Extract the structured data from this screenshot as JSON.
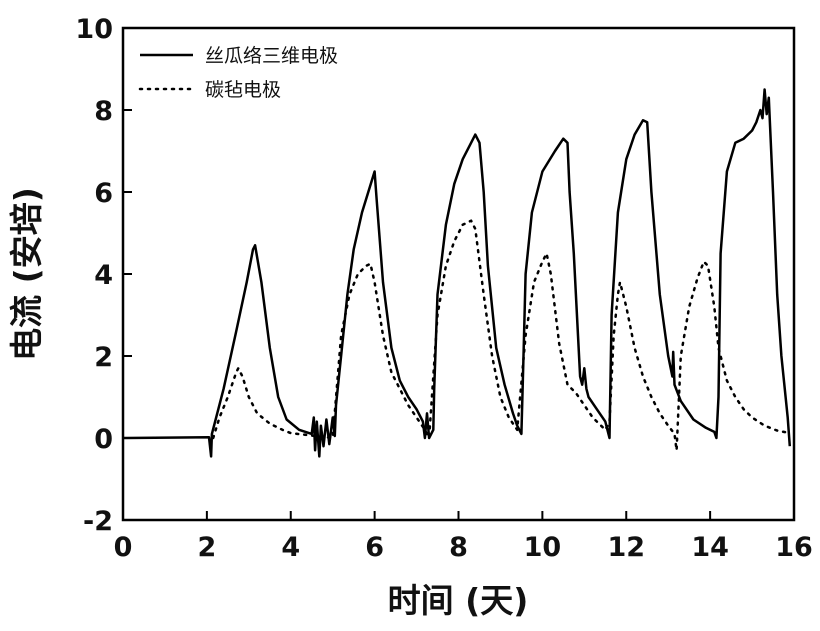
{
  "chart_data": {
    "type": "line",
    "xlabel": "时间 (天)",
    "ylabel": "电流 (安培)",
    "xlim": [
      0,
      16
    ],
    "ylim": [
      -2,
      10
    ],
    "xticks": [
      0,
      2,
      4,
      6,
      8,
      10,
      12,
      14,
      16
    ],
    "yticks": [
      -2,
      0,
      2,
      4,
      6,
      8,
      10
    ],
    "grid": false,
    "legend_position": "top-left",
    "series": [
      {
        "name": "丝瓜络三维电极",
        "style": "solid",
        "color": "#000000",
        "points": [
          [
            0,
            0.0
          ],
          [
            2.05,
            0.02
          ],
          [
            2.1,
            -0.45
          ],
          [
            2.12,
            0.1
          ],
          [
            2.4,
            1.2
          ],
          [
            2.7,
            2.6
          ],
          [
            2.95,
            3.8
          ],
          [
            3.1,
            4.6
          ],
          [
            3.15,
            4.7
          ],
          [
            3.3,
            3.8
          ],
          [
            3.5,
            2.2
          ],
          [
            3.7,
            1.0
          ],
          [
            3.9,
            0.45
          ],
          [
            4.2,
            0.2
          ],
          [
            4.5,
            0.1
          ],
          [
            4.55,
            0.5
          ],
          [
            4.58,
            -0.3
          ],
          [
            4.62,
            0.4
          ],
          [
            4.68,
            -0.45
          ],
          [
            4.72,
            0.3
          ],
          [
            4.78,
            -0.2
          ],
          [
            4.85,
            0.45
          ],
          [
            4.92,
            -0.15
          ],
          [
            5.0,
            0.5
          ],
          [
            5.05,
            0.05
          ],
          [
            5.08,
            0.8
          ],
          [
            5.2,
            2.0
          ],
          [
            5.35,
            3.5
          ],
          [
            5.5,
            4.6
          ],
          [
            5.7,
            5.5
          ],
          [
            5.85,
            6.0
          ],
          [
            6.0,
            6.5
          ],
          [
            6.05,
            5.8
          ],
          [
            6.2,
            3.8
          ],
          [
            6.4,
            2.2
          ],
          [
            6.6,
            1.4
          ],
          [
            6.8,
            1.0
          ],
          [
            7.0,
            0.7
          ],
          [
            7.15,
            0.4
          ],
          [
            7.2,
            0.0
          ],
          [
            7.25,
            0.6
          ],
          [
            7.3,
            0.0
          ],
          [
            7.4,
            0.2
          ],
          [
            7.42,
            1.2
          ],
          [
            7.5,
            3.5
          ],
          [
            7.7,
            5.2
          ],
          [
            7.9,
            6.2
          ],
          [
            8.1,
            6.8
          ],
          [
            8.3,
            7.2
          ],
          [
            8.4,
            7.4
          ],
          [
            8.5,
            7.2
          ],
          [
            8.6,
            6.0
          ],
          [
            8.7,
            4.2
          ],
          [
            8.9,
            2.2
          ],
          [
            9.1,
            1.3
          ],
          [
            9.3,
            0.6
          ],
          [
            9.4,
            0.3
          ],
          [
            9.5,
            0.1
          ],
          [
            9.55,
            2.0
          ],
          [
            9.6,
            4.0
          ],
          [
            9.75,
            5.5
          ],
          [
            10.0,
            6.5
          ],
          [
            10.3,
            7.0
          ],
          [
            10.5,
            7.3
          ],
          [
            10.6,
            7.2
          ],
          [
            10.65,
            6.0
          ],
          [
            10.75,
            4.5
          ],
          [
            10.85,
            2.5
          ],
          [
            10.9,
            1.5
          ],
          [
            10.95,
            1.3
          ],
          [
            11.0,
            1.7
          ],
          [
            11.05,
            1.2
          ],
          [
            11.1,
            1.0
          ],
          [
            11.3,
            0.7
          ],
          [
            11.5,
            0.4
          ],
          [
            11.6,
            0.0
          ],
          [
            11.65,
            3.0
          ],
          [
            11.8,
            5.5
          ],
          [
            12.0,
            6.8
          ],
          [
            12.2,
            7.4
          ],
          [
            12.4,
            7.75
          ],
          [
            12.5,
            7.7
          ],
          [
            12.6,
            6.0
          ],
          [
            12.8,
            3.5
          ],
          [
            13.0,
            2.0
          ],
          [
            13.1,
            1.5
          ],
          [
            13.12,
            2.1
          ],
          [
            13.15,
            1.3
          ],
          [
            13.3,
            0.9
          ],
          [
            13.6,
            0.45
          ],
          [
            13.9,
            0.25
          ],
          [
            14.1,
            0.15
          ],
          [
            14.15,
            0.0
          ],
          [
            14.2,
            1.0
          ],
          [
            14.25,
            4.5
          ],
          [
            14.4,
            6.5
          ],
          [
            14.6,
            7.2
          ],
          [
            14.8,
            7.3
          ],
          [
            15.0,
            7.5
          ],
          [
            15.1,
            7.7
          ],
          [
            15.2,
            8.0
          ],
          [
            15.25,
            7.8
          ],
          [
            15.3,
            8.5
          ],
          [
            15.35,
            7.9
          ],
          [
            15.4,
            8.3
          ],
          [
            15.5,
            6.0
          ],
          [
            15.6,
            3.5
          ],
          [
            15.7,
            2.0
          ],
          [
            15.8,
            1.0
          ],
          [
            15.85,
            0.5
          ],
          [
            15.9,
            -0.2
          ]
        ]
      },
      {
        "name": "碳毡电极",
        "style": "dotted",
        "color": "#000000",
        "points": [
          [
            2.15,
            0.0
          ],
          [
            2.3,
            0.5
          ],
          [
            2.5,
            1.0
          ],
          [
            2.7,
            1.6
          ],
          [
            2.75,
            1.7
          ],
          [
            2.85,
            1.5
          ],
          [
            3.0,
            1.0
          ],
          [
            3.2,
            0.6
          ],
          [
            3.5,
            0.35
          ],
          [
            3.8,
            0.2
          ],
          [
            4.0,
            0.12
          ],
          [
            5.0,
            0.0
          ],
          [
            5.2,
            2.5
          ],
          [
            5.4,
            3.5
          ],
          [
            5.6,
            4.0
          ],
          [
            5.8,
            4.2
          ],
          [
            5.9,
            4.25
          ],
          [
            6.0,
            3.8
          ],
          [
            6.2,
            2.5
          ],
          [
            6.4,
            1.6
          ],
          [
            6.6,
            1.2
          ],
          [
            6.8,
            0.8
          ],
          [
            7.0,
            0.5
          ],
          [
            7.2,
            0.2
          ],
          [
            7.3,
            0.0
          ],
          [
            7.5,
            3.0
          ],
          [
            7.7,
            4.2
          ],
          [
            7.9,
            4.8
          ],
          [
            8.1,
            5.2
          ],
          [
            8.3,
            5.3
          ],
          [
            8.4,
            5.1
          ],
          [
            8.6,
            3.5
          ],
          [
            8.8,
            2.0
          ],
          [
            9.0,
            1.0
          ],
          [
            9.2,
            0.5
          ],
          [
            9.4,
            0.2
          ],
          [
            9.6,
            2.5
          ],
          [
            9.8,
            3.8
          ],
          [
            10.0,
            4.3
          ],
          [
            10.1,
            4.5
          ],
          [
            10.2,
            4.0
          ],
          [
            10.4,
            2.3
          ],
          [
            10.6,
            1.3
          ],
          [
            10.8,
            1.1
          ],
          [
            11.0,
            0.8
          ],
          [
            11.2,
            0.5
          ],
          [
            11.5,
            0.2
          ],
          [
            11.6,
            0.4
          ],
          [
            11.7,
            2.5
          ],
          [
            11.8,
            3.5
          ],
          [
            11.85,
            3.8
          ],
          [
            12.0,
            3.2
          ],
          [
            12.2,
            2.2
          ],
          [
            12.4,
            1.5
          ],
          [
            12.6,
            1.0
          ],
          [
            12.8,
            0.6
          ],
          [
            13.0,
            0.3
          ],
          [
            13.15,
            0.1
          ],
          [
            13.2,
            -0.3
          ],
          [
            13.3,
            2.0
          ],
          [
            13.5,
            3.2
          ],
          [
            13.7,
            3.9
          ],
          [
            13.85,
            4.3
          ],
          [
            13.95,
            4.2
          ],
          [
            14.1,
            3.2
          ],
          [
            14.2,
            2.2
          ],
          [
            14.4,
            1.4
          ],
          [
            14.6,
            1.0
          ],
          [
            14.8,
            0.7
          ],
          [
            15.0,
            0.5
          ],
          [
            15.3,
            0.3
          ],
          [
            15.6,
            0.18
          ],
          [
            15.9,
            0.12
          ]
        ]
      }
    ]
  }
}
